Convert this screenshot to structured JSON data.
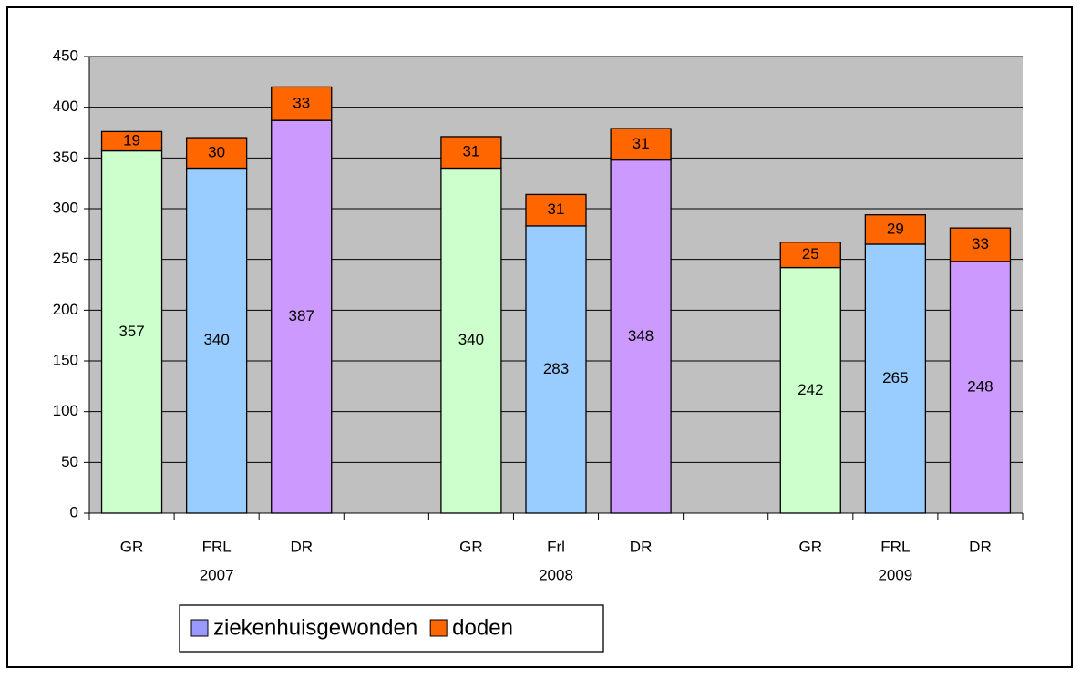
{
  "chart_data": {
    "type": "stacked_bar",
    "categories": [
      "GR",
      "FRL",
      "DR",
      null,
      "GR",
      "Frl",
      "DR",
      null,
      "GR",
      "FRL",
      "DR"
    ],
    "sub_labels": [
      null,
      "2007",
      null,
      null,
      null,
      "2008",
      null,
      null,
      null,
      "2009",
      null
    ],
    "series": [
      {
        "name": "ziekenhuisgewonden",
        "color": "#9999ff",
        "bar_colors": [
          "#ccffcc",
          "#99ccff",
          "#cc99ff",
          null,
          "#ccffcc",
          "#99ccff",
          "#cc99ff",
          null,
          "#ccffcc",
          "#99ccff",
          "#cc99ff"
        ],
        "values": [
          357,
          340,
          387,
          null,
          340,
          283,
          348,
          null,
          242,
          265,
          248
        ]
      },
      {
        "name": "doden",
        "color": "#ff6600",
        "values": [
          19,
          30,
          33,
          null,
          31,
          31,
          31,
          null,
          25,
          29,
          33
        ]
      }
    ],
    "ylim": [
      0,
      450
    ],
    "yticks": [
      0,
      50,
      100,
      150,
      200,
      250,
      300,
      350,
      400,
      450
    ],
    "grid": true,
    "plot_background": "#c0c0c0",
    "legend": "bottom"
  }
}
